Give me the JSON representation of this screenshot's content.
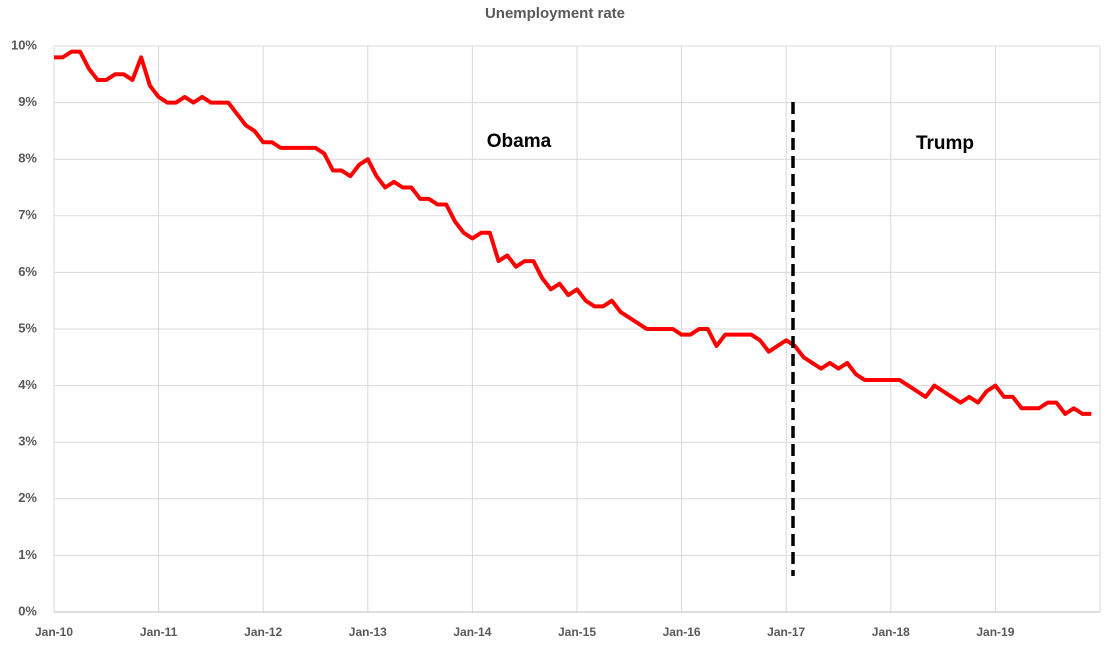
{
  "chart_data": {
    "type": "line",
    "title": "Unemployment rate",
    "categories": [
      "Jan-10",
      null,
      null,
      null,
      null,
      null,
      null,
      null,
      null,
      null,
      null,
      null,
      "Jan-11",
      null,
      null,
      null,
      null,
      null,
      null,
      null,
      null,
      null,
      null,
      null,
      "Jan-12",
      null,
      null,
      null,
      null,
      null,
      null,
      null,
      null,
      null,
      null,
      null,
      "Jan-13",
      null,
      null,
      null,
      null,
      null,
      null,
      null,
      null,
      null,
      null,
      null,
      "Jan-14",
      null,
      null,
      null,
      null,
      null,
      null,
      null,
      null,
      null,
      null,
      null,
      "Jan-15",
      null,
      null,
      null,
      null,
      null,
      null,
      null,
      null,
      null,
      null,
      null,
      "Jan-16",
      null,
      null,
      null,
      null,
      null,
      null,
      null,
      null,
      null,
      null,
      null,
      "Jan-17",
      null,
      null,
      null,
      null,
      null,
      null,
      null,
      null,
      null,
      null,
      null,
      "Jan-18",
      null,
      null,
      null,
      null,
      null,
      null,
      null,
      null,
      null,
      null,
      null,
      "Jan-19",
      null,
      null,
      null,
      null,
      null,
      null,
      null,
      null,
      null,
      null,
      null
    ],
    "series": [
      {
        "color": "#ff0000",
        "values": [
          9.8,
          9.8,
          9.9,
          9.9,
          9.6,
          9.4,
          9.4,
          9.5,
          9.5,
          9.4,
          9.8,
          9.3,
          9.1,
          9.0,
          9.0,
          9.1,
          9.0,
          9.1,
          9.0,
          9.0,
          9.0,
          8.8,
          8.6,
          8.5,
          8.3,
          8.3,
          8.2,
          8.2,
          8.2,
          8.2,
          8.2,
          8.1,
          7.8,
          7.8,
          7.7,
          7.9,
          8.0,
          7.7,
          7.5,
          7.6,
          7.5,
          7.5,
          7.3,
          7.3,
          7.2,
          7.2,
          6.9,
          6.7,
          6.6,
          6.7,
          6.7,
          6.2,
          6.3,
          6.1,
          6.2,
          6.2,
          5.9,
          5.7,
          5.8,
          5.6,
          5.7,
          5.5,
          5.4,
          5.4,
          5.5,
          5.3,
          5.2,
          5.1,
          5.0,
          5.0,
          5.0,
          5.0,
          4.9,
          4.9,
          5.0,
          5.0,
          4.7,
          4.9,
          4.9,
          4.9,
          4.9,
          4.8,
          4.6,
          4.7,
          4.8,
          4.7,
          4.5,
          4.4,
          4.3,
          4.4,
          4.3,
          4.4,
          4.2,
          4.1,
          4.1,
          4.1,
          4.1,
          4.1,
          4.0,
          3.9,
          3.8,
          4.0,
          3.9,
          3.8,
          3.7,
          3.8,
          3.7,
          3.9,
          4.0,
          3.8,
          3.8,
          3.6,
          3.6,
          3.6,
          3.7,
          3.7,
          3.5,
          3.6,
          3.5,
          3.5
        ]
      }
    ],
    "ylim": [
      0,
      10
    ],
    "yticks": [
      {
        "value": 0,
        "label": "0%"
      },
      {
        "value": 1,
        "label": "1%"
      },
      {
        "value": 2,
        "label": "2%"
      },
      {
        "value": 3,
        "label": "3%"
      },
      {
        "value": 4,
        "label": "4%"
      },
      {
        "value": 5,
        "label": "5%"
      },
      {
        "value": 6,
        "label": "6%"
      },
      {
        "value": 7,
        "label": "7%"
      },
      {
        "value": 8,
        "label": "8%"
      },
      {
        "value": 9,
        "label": "9%"
      },
      {
        "value": 10,
        "label": "10%"
      }
    ],
    "grid": true,
    "annotations": [
      "Obama",
      "Trump"
    ]
  }
}
